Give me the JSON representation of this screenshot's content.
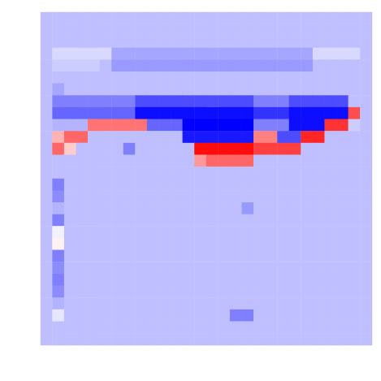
{
  "chart_data": {
    "type": "heatmap",
    "tick_labels": false,
    "crange": [
      -1,
      1
    ],
    "cells": [
      [
        -0.25,
        -0.25,
        -0.25,
        -0.25,
        -0.25,
        -0.25,
        -0.25,
        -0.25,
        -0.25,
        -0.25,
        -0.25,
        -0.25,
        -0.25,
        -0.25,
        -0.25,
        -0.25,
        -0.25,
        -0.25,
        -0.25,
        -0.25,
        -0.25,
        -0.25,
        -0.25,
        -0.25,
        -0.25,
        -0.25,
        -0.25,
        -0.25
      ],
      [
        -0.25,
        -0.25,
        -0.25,
        -0.25,
        -0.25,
        -0.25,
        -0.25,
        -0.25,
        -0.25,
        -0.25,
        -0.25,
        -0.25,
        -0.25,
        -0.25,
        -0.25,
        -0.25,
        -0.25,
        -0.25,
        -0.25,
        -0.25,
        -0.25,
        -0.25,
        -0.25,
        -0.25,
        -0.25,
        -0.25,
        -0.25,
        -0.25
      ],
      [
        -0.25,
        -0.25,
        -0.25,
        -0.25,
        -0.25,
        -0.25,
        -0.25,
        -0.25,
        -0.25,
        -0.25,
        -0.25,
        -0.25,
        -0.25,
        -0.25,
        -0.25,
        -0.25,
        -0.25,
        -0.25,
        -0.25,
        -0.25,
        -0.25,
        -0.25,
        -0.25,
        -0.25,
        -0.25,
        -0.25,
        -0.25,
        -0.25
      ],
      [
        -0.25,
        -0.15,
        -0.15,
        -0.15,
        -0.15,
        -0.15,
        -0.35,
        -0.35,
        -0.35,
        -0.35,
        -0.35,
        -0.35,
        -0.35,
        -0.35,
        -0.35,
        -0.35,
        -0.35,
        -0.35,
        -0.35,
        -0.35,
        -0.35,
        -0.35,
        -0.35,
        -0.15,
        -0.15,
        -0.15,
        -0.15,
        -0.25
      ],
      [
        -0.25,
        -0.2,
        -0.2,
        -0.2,
        -0.2,
        -0.25,
        -0.4,
        -0.4,
        -0.4,
        -0.4,
        -0.4,
        -0.4,
        -0.4,
        -0.4,
        -0.4,
        -0.4,
        -0.4,
        -0.4,
        -0.4,
        -0.4,
        -0.4,
        -0.4,
        -0.4,
        -0.25,
        -0.25,
        -0.25,
        -0.25,
        -0.25
      ],
      [
        -0.25,
        -0.25,
        -0.25,
        -0.25,
        -0.25,
        -0.25,
        -0.25,
        -0.25,
        -0.25,
        -0.25,
        -0.25,
        -0.25,
        -0.25,
        -0.25,
        -0.25,
        -0.25,
        -0.25,
        -0.25,
        -0.25,
        -0.25,
        -0.25,
        -0.25,
        -0.25,
        -0.25,
        -0.25,
        -0.25,
        -0.25,
        -0.25
      ],
      [
        -0.25,
        -0.35,
        -0.25,
        -0.25,
        -0.25,
        -0.25,
        -0.25,
        -0.25,
        -0.25,
        -0.25,
        -0.25,
        -0.25,
        -0.25,
        -0.25,
        -0.25,
        -0.25,
        -0.25,
        -0.25,
        -0.25,
        -0.25,
        -0.25,
        -0.25,
        -0.25,
        -0.25,
        -0.25,
        -0.25,
        -0.25,
        -0.25
      ],
      [
        -0.25,
        -0.5,
        -0.5,
        -0.5,
        -0.5,
        -0.5,
        -0.5,
        -0.5,
        -0.7,
        -0.7,
        -0.7,
        -0.7,
        -0.7,
        -0.7,
        -0.7,
        -0.7,
        -0.7,
        -0.7,
        -0.5,
        -0.5,
        -0.5,
        -0.7,
        -0.7,
        -0.7,
        -0.7,
        -0.7,
        -0.25,
        -0.25
      ],
      [
        -0.25,
        -0.6,
        -0.6,
        -0.6,
        -0.6,
        -0.6,
        -0.6,
        -0.6,
        -0.95,
        -0.95,
        -0.95,
        -0.95,
        -0.95,
        -0.95,
        -0.95,
        -0.95,
        -0.95,
        -0.95,
        -0.8,
        -0.8,
        -0.8,
        -0.95,
        -0.95,
        -0.95,
        -0.95,
        -0.95,
        0.7,
        -0.25
      ],
      [
        -0.25,
        -0.3,
        -0.3,
        -0.3,
        0.55,
        0.55,
        0.55,
        0.55,
        0.55,
        -0.6,
        -0.6,
        -0.6,
        -1,
        -1,
        -1,
        -1,
        -1,
        -1,
        -0.5,
        -0.5,
        -0.5,
        -0.95,
        -0.95,
        -0.95,
        0.8,
        0.8,
        -0.2,
        -0.25
      ],
      [
        -0.25,
        0.3,
        0.6,
        0.6,
        -0.25,
        -0.25,
        -0.25,
        -0.25,
        -0.25,
        -0.25,
        -0.25,
        -0.25,
        -0.9,
        -0.9,
        -0.9,
        -0.9,
        -0.9,
        -0.9,
        0.5,
        0.5,
        -0.7,
        -0.7,
        0.85,
        0.85,
        -0.25,
        -0.25,
        -0.25,
        -0.25
      ],
      [
        -0.25,
        0.6,
        0.2,
        -0.25,
        -0.25,
        -0.25,
        -0.25,
        -0.5,
        -0.25,
        -0.25,
        -0.25,
        -0.25,
        -0.25,
        0.95,
        0.95,
        0.95,
        0.95,
        0.95,
        0.75,
        0.75,
        0.75,
        0.75,
        -0.25,
        -0.25,
        -0.25,
        -0.25,
        -0.25,
        -0.25
      ],
      [
        -0.25,
        -0.25,
        -0.25,
        -0.25,
        -0.25,
        -0.25,
        -0.25,
        -0.25,
        -0.25,
        -0.25,
        -0.25,
        -0.25,
        -0.25,
        0.4,
        0.6,
        0.6,
        0.6,
        0.6,
        -0.25,
        -0.25,
        -0.25,
        -0.25,
        -0.25,
        -0.25,
        -0.25,
        -0.25,
        -0.25,
        -0.25
      ],
      [
        -0.25,
        -0.25,
        -0.25,
        -0.25,
        -0.25,
        -0.25,
        -0.25,
        -0.25,
        -0.25,
        -0.25,
        -0.25,
        -0.25,
        -0.25,
        -0.25,
        -0.25,
        -0.25,
        -0.25,
        -0.25,
        -0.25,
        -0.25,
        -0.25,
        -0.25,
        -0.25,
        -0.25,
        -0.25,
        -0.25,
        -0.25,
        -0.25
      ],
      [
        -0.25,
        -0.5,
        -0.25,
        -0.25,
        -0.25,
        -0.25,
        -0.25,
        -0.25,
        -0.25,
        -0.25,
        -0.25,
        -0.25,
        -0.25,
        -0.25,
        -0.25,
        -0.25,
        -0.25,
        -0.25,
        -0.25,
        -0.25,
        -0.25,
        -0.25,
        -0.25,
        -0.25,
        -0.25,
        -0.25,
        -0.25,
        -0.25
      ],
      [
        -0.25,
        -0.45,
        -0.25,
        -0.25,
        -0.25,
        -0.25,
        -0.25,
        -0.25,
        -0.25,
        -0.25,
        -0.25,
        -0.25,
        -0.25,
        -0.25,
        -0.25,
        -0.25,
        -0.25,
        -0.25,
        -0.25,
        -0.25,
        -0.25,
        -0.25,
        -0.25,
        -0.25,
        -0.25,
        -0.25,
        -0.25,
        -0.25
      ],
      [
        -0.25,
        -0.3,
        -0.25,
        -0.25,
        -0.25,
        -0.25,
        -0.25,
        -0.25,
        -0.25,
        -0.25,
        -0.25,
        -0.25,
        -0.25,
        -0.25,
        -0.25,
        -0.25,
        -0.25,
        -0.4,
        -0.25,
        -0.25,
        -0.25,
        -0.25,
        -0.25,
        -0.25,
        -0.25,
        -0.25,
        -0.25,
        -0.25
      ],
      [
        -0.25,
        -0.5,
        -0.25,
        -0.25,
        -0.25,
        -0.25,
        -0.25,
        -0.25,
        -0.25,
        -0.25,
        -0.25,
        -0.25,
        -0.25,
        -0.25,
        -0.25,
        -0.25,
        -0.25,
        -0.25,
        -0.25,
        -0.25,
        -0.25,
        -0.25,
        -0.25,
        -0.25,
        -0.25,
        -0.25,
        -0.25,
        -0.25
      ],
      [
        -0.25,
        -0.05,
        -0.25,
        -0.25,
        -0.25,
        -0.25,
        -0.25,
        -0.25,
        -0.25,
        -0.25,
        -0.25,
        -0.25,
        -0.25,
        -0.25,
        -0.25,
        -0.25,
        -0.25,
        -0.25,
        -0.25,
        -0.25,
        -0.25,
        -0.25,
        -0.25,
        -0.25,
        -0.25,
        -0.25,
        -0.25,
        -0.25
      ],
      [
        -0.25,
        0.05,
        -0.25,
        -0.25,
        -0.25,
        -0.25,
        -0.25,
        -0.25,
        -0.25,
        -0.25,
        -0.25,
        -0.25,
        -0.25,
        -0.25,
        -0.25,
        -0.25,
        -0.25,
        -0.25,
        -0.25,
        -0.25,
        -0.25,
        -0.25,
        -0.25,
        -0.25,
        -0.25,
        -0.25,
        -0.25,
        -0.25
      ],
      [
        -0.25,
        -0.5,
        -0.25,
        -0.25,
        -0.25,
        -0.25,
        -0.25,
        -0.25,
        -0.25,
        -0.25,
        -0.25,
        -0.25,
        -0.25,
        -0.25,
        -0.25,
        -0.25,
        -0.25,
        -0.25,
        -0.25,
        -0.25,
        -0.25,
        -0.25,
        -0.25,
        -0.25,
        -0.25,
        -0.25,
        -0.25,
        -0.25
      ],
      [
        -0.25,
        -0.45,
        -0.25,
        -0.25,
        -0.25,
        -0.25,
        -0.25,
        -0.25,
        -0.25,
        -0.25,
        -0.25,
        -0.25,
        -0.25,
        -0.25,
        -0.25,
        -0.25,
        -0.25,
        -0.25,
        -0.25,
        -0.25,
        -0.25,
        -0.25,
        -0.25,
        -0.25,
        -0.25,
        -0.25,
        -0.25,
        -0.25
      ],
      [
        -0.25,
        -0.5,
        -0.25,
        -0.25,
        -0.25,
        -0.25,
        -0.25,
        -0.25,
        -0.25,
        -0.25,
        -0.25,
        -0.25,
        -0.25,
        -0.25,
        -0.25,
        -0.25,
        -0.25,
        -0.25,
        -0.25,
        -0.25,
        -0.25,
        -0.25,
        -0.25,
        -0.25,
        -0.25,
        -0.25,
        -0.25,
        -0.25
      ],
      [
        -0.25,
        -0.45,
        -0.25,
        -0.25,
        -0.25,
        -0.25,
        -0.25,
        -0.25,
        -0.25,
        -0.25,
        -0.25,
        -0.25,
        -0.25,
        -0.25,
        -0.25,
        -0.25,
        -0.25,
        -0.25,
        -0.25,
        -0.25,
        -0.25,
        -0.25,
        -0.25,
        -0.25,
        -0.25,
        -0.25,
        -0.25,
        -0.25
      ],
      [
        -0.25,
        -0.3,
        -0.25,
        -0.25,
        -0.25,
        -0.25,
        -0.25,
        -0.25,
        -0.25,
        -0.25,
        -0.25,
        -0.25,
        -0.25,
        -0.25,
        -0.25,
        -0.25,
        -0.25,
        -0.25,
        -0.25,
        -0.25,
        -0.25,
        -0.25,
        -0.25,
        -0.25,
        -0.25,
        -0.25,
        -0.25,
        -0.25
      ],
      [
        -0.25,
        -0.1,
        -0.25,
        -0.25,
        -0.25,
        -0.25,
        -0.25,
        -0.25,
        -0.25,
        -0.25,
        -0.25,
        -0.25,
        -0.25,
        -0.25,
        -0.25,
        -0.25,
        -0.5,
        -0.5,
        -0.25,
        -0.25,
        -0.25,
        -0.25,
        -0.25,
        -0.25,
        -0.25,
        -0.25,
        -0.25,
        -0.25
      ],
      [
        -0.25,
        -0.25,
        -0.25,
        -0.25,
        -0.25,
        -0.25,
        -0.25,
        -0.25,
        -0.25,
        -0.25,
        -0.25,
        -0.25,
        -0.25,
        -0.25,
        -0.25,
        -0.25,
        -0.25,
        -0.25,
        -0.25,
        -0.25,
        -0.25,
        -0.25,
        -0.25,
        -0.25,
        -0.25,
        -0.25,
        -0.25,
        -0.25
      ],
      [
        -0.25,
        -0.25,
        -0.25,
        -0.25,
        -0.25,
        -0.25,
        -0.25,
        -0.25,
        -0.25,
        -0.25,
        -0.25,
        -0.25,
        -0.25,
        -0.25,
        -0.25,
        -0.25,
        -0.25,
        -0.25,
        -0.25,
        -0.25,
        -0.25,
        -0.25,
        -0.25,
        -0.25,
        -0.25,
        -0.25,
        -0.25,
        -0.25
      ]
    ]
  }
}
